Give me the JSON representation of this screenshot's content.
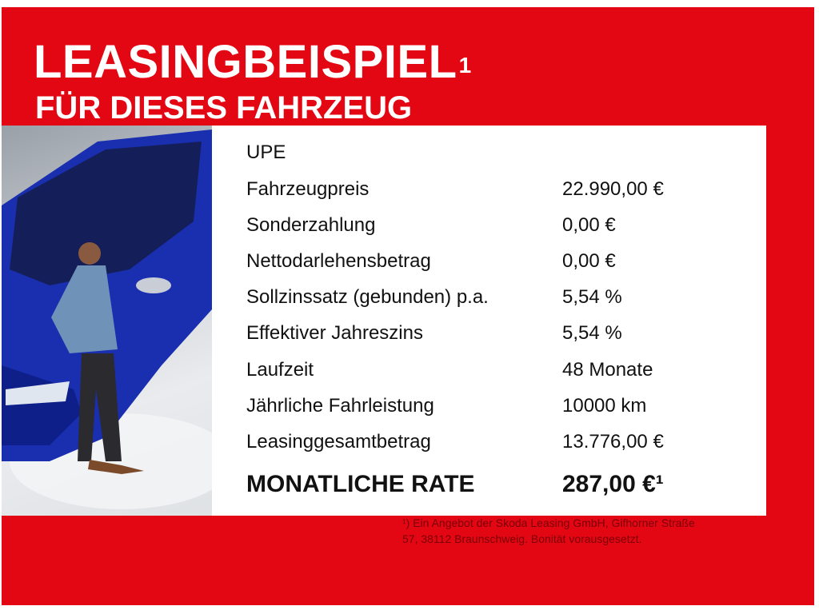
{
  "header": {
    "title": "LEASINGBEISPIEL",
    "title_sup": "1",
    "subtitle": "FÜR DIESES FAHRZEUG"
  },
  "table": {
    "heading": "UPE",
    "rows": [
      {
        "label": "Fahrzeugpreis",
        "value": "22.990,00 €"
      },
      {
        "label": "Sonderzahlung",
        "value": "0,00 €"
      },
      {
        "label": "Nettodarlehensbetrag",
        "value": "0,00 €"
      },
      {
        "label": "Sollzinssatz (gebunden) p.a.",
        "value": "5,54 %"
      },
      {
        "label": "Effektiver Jahreszins",
        "value": "5,54 %"
      },
      {
        "label": "Laufzeit",
        "value": "48 Monate"
      },
      {
        "label": "Jährliche Fahrleistung",
        "value": "10000 km"
      },
      {
        "label": "Leasinggesamtbetrag",
        "value": "13.776,00 €"
      }
    ],
    "rate_label": "MONATLICHE RATE",
    "rate_value": "287,00 €¹"
  },
  "footnote": {
    "line1": "¹) Ein Angebot der Skoda Leasing GmbH, Gifhorner Straße",
    "line2": "57, 38112 Braunschweig. Bonität vorausgesetzt."
  },
  "colors": {
    "brand_red": "#e30613",
    "car_blue": "#1a2fb0"
  }
}
